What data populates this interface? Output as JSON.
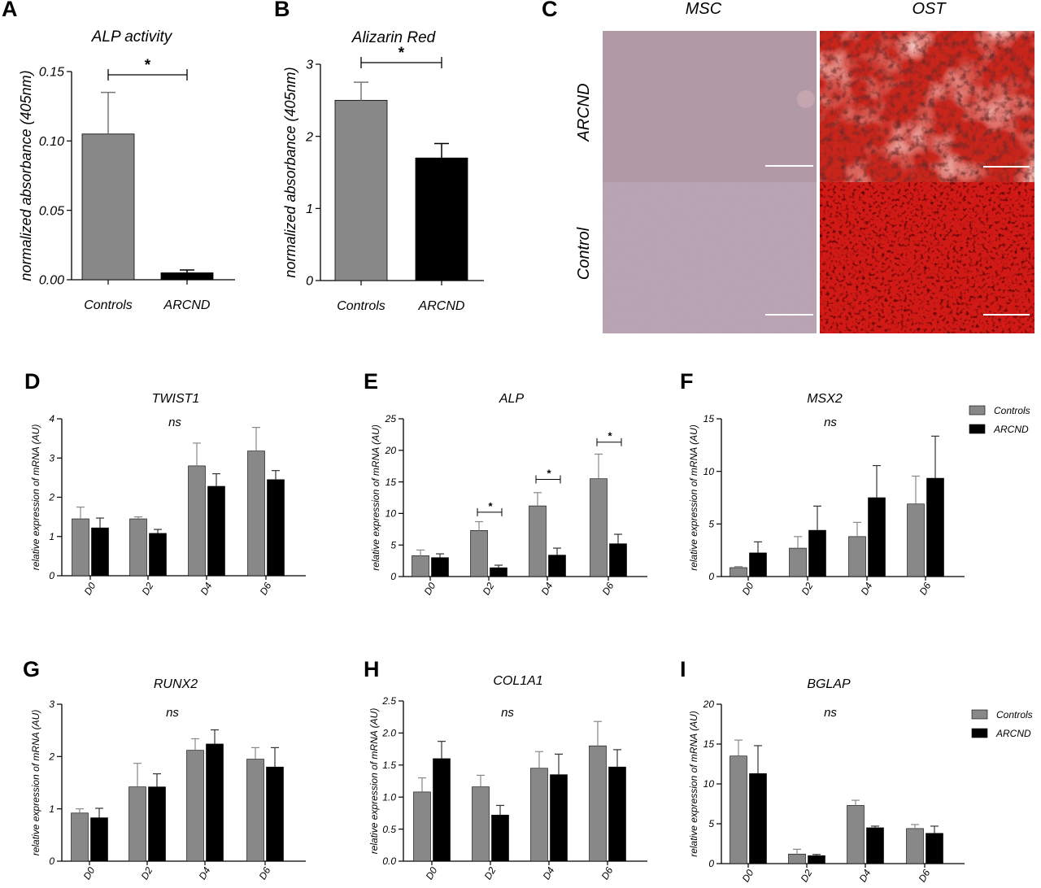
{
  "panel_letters": [
    "A",
    "B",
    "C",
    "D",
    "E",
    "F",
    "G",
    "H",
    "I"
  ],
  "colors": {
    "controls": "#888888",
    "arcnd": "#000000",
    "axis": "#000000",
    "scale_bar": "#ffffff"
  },
  "micrographs": {
    "columns": [
      "MSC",
      "OST"
    ],
    "rows": [
      "ARCND",
      "Control"
    ],
    "tiles": [
      {
        "row": "ARCND",
        "column": "MSC",
        "stain": "light purple, sparse dark dots"
      },
      {
        "row": "ARCND",
        "column": "OST",
        "stain": "bright red with pale areas and dark clusters"
      },
      {
        "row": "Control",
        "column": "MSC",
        "stain": "light purple"
      },
      {
        "row": "Control",
        "column": "OST",
        "stain": "deep red with dense black clusters"
      }
    ]
  },
  "chart_data": [
    {
      "id": "A",
      "type": "bar",
      "title": "ALP activity",
      "xlabel": "",
      "ylabel": "normalized absorbance (405nm)",
      "categories": [
        "Controls",
        "ARCND"
      ],
      "series": [
        {
          "values": [
            0.105,
            0.005
          ],
          "errors": [
            0.03,
            0.002
          ]
        }
      ],
      "bar_colors": [
        "#888888",
        "#000000"
      ],
      "ylim": [
        0,
        0.15
      ],
      "yticks": [
        0,
        0.05,
        0.1,
        0.15
      ],
      "ytick_labels": [
        "0.00",
        "0.05",
        "0.10",
        "0.15"
      ],
      "significance": [
        {
          "between": [
            "Controls",
            "ARCND"
          ],
          "label": "*"
        }
      ]
    },
    {
      "id": "B",
      "type": "bar",
      "title": "Alizarin Red",
      "xlabel": "",
      "ylabel": "normalized absorbance (405nm)",
      "categories": [
        "Controls",
        "ARCND"
      ],
      "series": [
        {
          "values": [
            2.5,
            1.7
          ],
          "errors": [
            0.25,
            0.2
          ]
        }
      ],
      "bar_colors": [
        "#888888",
        "#000000"
      ],
      "ylim": [
        0,
        3
      ],
      "yticks": [
        0,
        1,
        2,
        3
      ],
      "ytick_labels": [
        "0",
        "1",
        "2",
        "3"
      ],
      "significance": [
        {
          "between": [
            "Controls",
            "ARCND"
          ],
          "label": "*"
        }
      ]
    },
    {
      "id": "D",
      "type": "bar",
      "title": "TWIST1",
      "annotation": "ns",
      "ylabel": "relative expression of mRNA (AU)",
      "categories": [
        "D0",
        "D2",
        "D4",
        "D6"
      ],
      "series": [
        {
          "name": "Controls",
          "values": [
            1.45,
            1.45,
            2.8,
            3.18
          ],
          "errors": [
            0.3,
            0.05,
            0.58,
            0.6
          ]
        },
        {
          "name": "ARCND",
          "values": [
            1.22,
            1.08,
            2.28,
            2.45
          ],
          "errors": [
            0.25,
            0.1,
            0.32,
            0.23
          ]
        }
      ],
      "ylim": [
        0,
        4
      ],
      "yticks": [
        0,
        1,
        2,
        3,
        4
      ],
      "ytick_labels": [
        "0",
        "1",
        "2",
        "3",
        "4"
      ],
      "significance": []
    },
    {
      "id": "E",
      "type": "bar",
      "title": "ALP",
      "ylabel": "relative expression of mRNA (AU)",
      "categories": [
        "D0",
        "D2",
        "D4",
        "D6"
      ],
      "series": [
        {
          "name": "Controls",
          "values": [
            3.3,
            7.3,
            11.2,
            15.5
          ],
          "errors": [
            0.9,
            1.4,
            2.1,
            3.9
          ]
        },
        {
          "name": "ARCND",
          "values": [
            3.0,
            1.4,
            3.4,
            5.2
          ],
          "errors": [
            0.6,
            0.4,
            1.1,
            1.5
          ]
        }
      ],
      "ylim": [
        0,
        25
      ],
      "yticks": [
        0,
        5,
        10,
        15,
        20,
        25
      ],
      "ytick_labels": [
        "0",
        "5",
        "10",
        "15",
        "20",
        "25"
      ],
      "significance": [
        {
          "category": "D2",
          "label": "*",
          "bracket_y": 10.2
        },
        {
          "category": "D4",
          "label": "*",
          "bracket_y": 15.4
        },
        {
          "category": "D6",
          "label": "*",
          "bracket_y": 21.3
        }
      ]
    },
    {
      "id": "F",
      "type": "bar",
      "title": "MSX2",
      "annotation": "ns",
      "ylabel": "relative expression of mRNA (AU)",
      "categories": [
        "D0",
        "D2",
        "D4",
        "D6"
      ],
      "series": [
        {
          "name": "Controls",
          "values": [
            0.85,
            2.7,
            3.8,
            6.9
          ],
          "errors": [
            0.1,
            1.1,
            1.35,
            2.65
          ]
        },
        {
          "name": "ARCND",
          "values": [
            2.25,
            4.4,
            7.5,
            9.35
          ],
          "errors": [
            1.05,
            2.3,
            3.05,
            4.0
          ]
        }
      ],
      "ylim": [
        0,
        15
      ],
      "yticks": [
        0,
        5,
        10,
        15
      ],
      "ytick_labels": [
        "0",
        "5",
        "10",
        "15"
      ],
      "significance": [],
      "legend": {
        "entries": [
          "Controls",
          "ARCND"
        ],
        "position": "right"
      }
    },
    {
      "id": "G",
      "type": "bar",
      "title": "RUNX2",
      "annotation": "ns",
      "ylabel": "relative expression of mRNA (AU)",
      "categories": [
        "D0",
        "D2",
        "D4",
        "D6"
      ],
      "series": [
        {
          "name": "Controls",
          "values": [
            0.92,
            1.42,
            2.12,
            1.95
          ],
          "errors": [
            0.08,
            0.45,
            0.22,
            0.22
          ]
        },
        {
          "name": "ARCND",
          "values": [
            0.83,
            1.42,
            2.24,
            1.8
          ],
          "errors": [
            0.18,
            0.25,
            0.27,
            0.37
          ]
        }
      ],
      "ylim": [
        0,
        3
      ],
      "yticks": [
        0,
        1,
        2,
        3
      ],
      "ytick_labels": [
        "0",
        "1",
        "2",
        "3"
      ],
      "significance": []
    },
    {
      "id": "H",
      "type": "bar",
      "title": "COL1A1",
      "annotation": "ns",
      "ylabel": "relative expression of mRNA (AU)",
      "categories": [
        "D0",
        "D2",
        "D4",
        "D6"
      ],
      "series": [
        {
          "name": "Controls",
          "values": [
            1.08,
            1.16,
            1.45,
            1.8
          ],
          "errors": [
            0.22,
            0.18,
            0.26,
            0.38
          ]
        },
        {
          "name": "ARCND",
          "values": [
            1.6,
            0.72,
            1.35,
            1.47
          ],
          "errors": [
            0.27,
            0.15,
            0.32,
            0.27
          ]
        }
      ],
      "ylim": [
        0,
        2.5
      ],
      "yticks": [
        0,
        0.5,
        1,
        1.5,
        2,
        2.5
      ],
      "ytick_labels": [
        "0.0",
        "0.5",
        "1.0",
        "1.5",
        "2.0",
        "2.5"
      ],
      "significance": []
    },
    {
      "id": "I",
      "type": "bar",
      "title": "BGLAP",
      "annotation": "ns",
      "ylabel": "relative expression of mRNA (AU)",
      "categories": [
        "D0",
        "D2",
        "D4",
        "D6"
      ],
      "series": [
        {
          "name": "Controls",
          "values": [
            13.5,
            1.2,
            7.3,
            4.4
          ],
          "errors": [
            2.0,
            0.6,
            0.65,
            0.5
          ]
        },
        {
          "name": "ARCND",
          "values": [
            11.3,
            1.0,
            4.5,
            3.8
          ],
          "errors": [
            3.5,
            0.15,
            0.2,
            0.9
          ]
        }
      ],
      "ylim": [
        0,
        20
      ],
      "yticks": [
        0,
        5,
        10,
        15,
        20
      ],
      "ytick_labels": [
        "0",
        "5",
        "10",
        "15",
        "20"
      ],
      "significance": [],
      "legend": {
        "entries": [
          "Controls",
          "ARCND"
        ],
        "position": "right"
      }
    }
  ]
}
